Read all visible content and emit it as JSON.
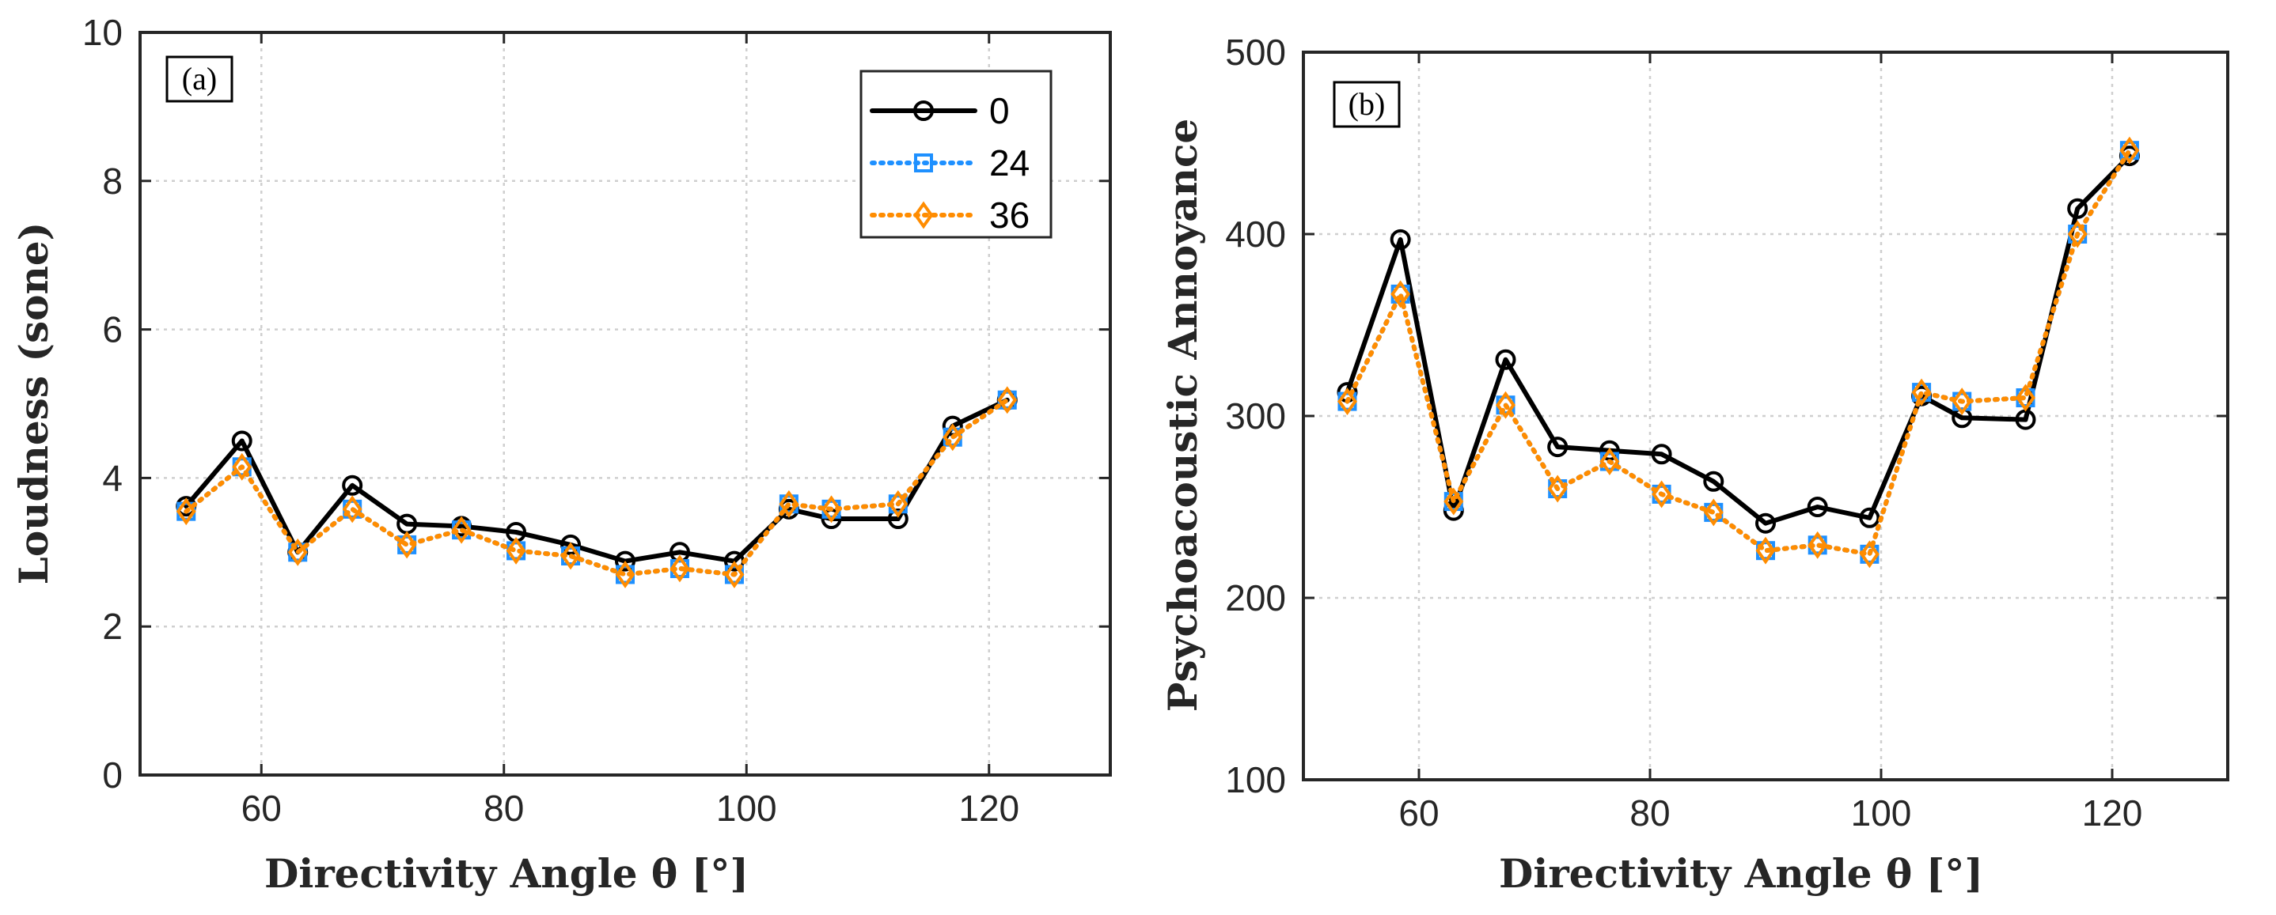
{
  "chart_data": [
    {
      "type": "line",
      "panel_label": "(a)",
      "xlabel": "Directivity Angle θ [°]",
      "ylabel": "Loudness (sone)",
      "xlim": [
        50,
        130
      ],
      "ylim": [
        0,
        10
      ],
      "xticks": [
        60,
        80,
        100,
        120
      ],
      "yticks": [
        0,
        2,
        4,
        6,
        8,
        10
      ],
      "grid": true,
      "legend": "top-right",
      "x": [
        53.8,
        58.4,
        63.0,
        67.5,
        72.0,
        76.5,
        81.0,
        85.5,
        90.0,
        94.5,
        99.0,
        103.5,
        107.0,
        112.5,
        117.0,
        121.5
      ],
      "series": [
        {
          "name": "0",
          "color": "#000000",
          "line": "solid",
          "marker": "circle",
          "values": [
            3.62,
            4.5,
            3.0,
            3.9,
            3.38,
            3.35,
            3.27,
            3.1,
            2.88,
            3.0,
            2.88,
            3.58,
            3.45,
            3.45,
            4.7,
            5.05
          ]
        },
        {
          "name": "24",
          "color": "#1e90ff",
          "line": "dotted",
          "marker": "square",
          "values": [
            3.55,
            4.15,
            3.0,
            3.58,
            3.1,
            3.3,
            3.02,
            2.95,
            2.7,
            2.78,
            2.7,
            3.65,
            3.58,
            3.65,
            4.55,
            5.05
          ]
        },
        {
          "name": "36",
          "color": "#ff8c00",
          "line": "dotted",
          "marker": "diamond",
          "values": [
            3.55,
            4.15,
            3.0,
            3.58,
            3.1,
            3.3,
            3.02,
            2.95,
            2.7,
            2.78,
            2.7,
            3.65,
            3.58,
            3.65,
            4.55,
            5.05
          ]
        }
      ]
    },
    {
      "type": "line",
      "panel_label": "(b)",
      "xlabel": "Directivity Angle θ [°]",
      "ylabel": "Psychoacoustic Annoyance",
      "xlim": [
        50,
        130
      ],
      "ylim": [
        100,
        500
      ],
      "xticks": [
        60,
        80,
        100,
        120
      ],
      "yticks": [
        100,
        200,
        300,
        400,
        500
      ],
      "grid": true,
      "x": [
        53.8,
        58.4,
        63.0,
        67.5,
        72.0,
        76.5,
        81.0,
        85.5,
        90.0,
        94.5,
        99.0,
        103.5,
        107.0,
        112.5,
        117.0,
        121.5
      ],
      "series": [
        {
          "name": "0",
          "color": "#000000",
          "line": "solid",
          "marker": "circle",
          "values": [
            313,
            397,
            248,
            331,
            283,
            281,
            279,
            264,
            241,
            250,
            244,
            311,
            299,
            298,
            414,
            443
          ]
        },
        {
          "name": "24",
          "color": "#1e90ff",
          "line": "dotted",
          "marker": "square",
          "values": [
            308,
            367,
            253,
            306,
            260,
            275,
            257,
            247,
            226,
            229,
            224,
            313,
            308,
            310,
            400,
            446
          ]
        },
        {
          "name": "36",
          "color": "#ff8c00",
          "line": "dotted",
          "marker": "diamond",
          "values": [
            308,
            367,
            253,
            306,
            260,
            275,
            257,
            247,
            226,
            229,
            224,
            313,
            308,
            310,
            400,
            446
          ]
        }
      ]
    }
  ]
}
